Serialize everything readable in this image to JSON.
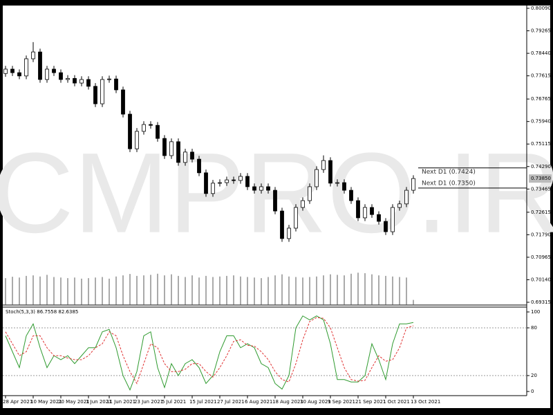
{
  "chart_data": [
    {
      "type": "candlestick",
      "watermark": "CMPRO.IR",
      "xlim": [
        0,
        59
      ],
      "ylim": [
        0.69315,
        0.8009
      ],
      "yticks": [
        {
          "value": 0.8009,
          "label": "0.80090"
        },
        0.79265,
        {
          "value": 0.7844,
          "label": "0.78440"
        },
        0.77615,
        0.76765,
        {
          "value": 0.7594,
          "label": "0.75940"
        },
        0.75115,
        {
          "value": 0.7429,
          "label": "0.74290"
        },
        0.73465,
        0.72615,
        {
          "value": 0.7179,
          "label": "0.71790"
        },
        0.70965,
        {
          "value": 0.7014,
          "label": "0.70140"
        },
        0.69315
      ],
      "last_price": {
        "value": 0.7385,
        "label": "0.73850"
      },
      "levels": [
        {
          "value": 0.7424,
          "label": "Next D1 (0.7424)"
        },
        {
          "value": 0.735,
          "label": "Next D1 (0.7350)"
        }
      ],
      "ohlc": [
        [
          0.777,
          0.7798,
          0.7758,
          0.7786
        ],
        [
          0.7786,
          0.7798,
          0.7761,
          0.7773
        ],
        [
          0.7773,
          0.7785,
          0.7749,
          0.7761
        ],
        [
          0.7761,
          0.7836,
          0.7749,
          0.7824
        ],
        [
          0.7824,
          0.7885,
          0.7812,
          0.7849
        ],
        [
          0.7849,
          0.7861,
          0.7736,
          0.7748
        ],
        [
          0.7748,
          0.7798,
          0.7736,
          0.7786
        ],
        [
          0.7786,
          0.7798,
          0.7761,
          0.7773
        ],
        [
          0.7773,
          0.7785,
          0.7736,
          0.7748
        ],
        [
          0.7748,
          0.7764,
          0.7736,
          0.7752
        ],
        [
          0.7752,
          0.7764,
          0.7723,
          0.7735
        ],
        [
          0.7735,
          0.776,
          0.7723,
          0.7748
        ],
        [
          0.7748,
          0.776,
          0.7711,
          0.7723
        ],
        [
          0.7723,
          0.7735,
          0.7647,
          0.7659
        ],
        [
          0.7659,
          0.776,
          0.7647,
          0.7748
        ],
        [
          0.7748,
          0.7762,
          0.7736,
          0.775
        ],
        [
          0.775,
          0.7762,
          0.7698,
          0.771
        ],
        [
          0.771,
          0.7722,
          0.7609,
          0.7621
        ],
        [
          0.7621,
          0.7633,
          0.7482,
          0.7494
        ],
        [
          0.7494,
          0.757,
          0.7482,
          0.7558
        ],
        [
          0.7558,
          0.7595,
          0.7546,
          0.7583
        ],
        [
          0.7583,
          0.7595,
          0.7568,
          0.758
        ],
        [
          0.758,
          0.7592,
          0.752,
          0.7532
        ],
        [
          0.7532,
          0.7544,
          0.7457,
          0.7469
        ],
        [
          0.7469,
          0.7532,
          0.7457,
          0.752
        ],
        [
          0.752,
          0.7532,
          0.7432,
          0.7444
        ],
        [
          0.7444,
          0.7494,
          0.7432,
          0.7482
        ],
        [
          0.7482,
          0.7494,
          0.7444,
          0.7456
        ],
        [
          0.7456,
          0.7468,
          0.7394,
          0.7406
        ],
        [
          0.7406,
          0.7418,
          0.7318,
          0.733
        ],
        [
          0.733,
          0.738,
          0.7318,
          0.7368
        ],
        [
          0.7368,
          0.7382,
          0.7356,
          0.737
        ],
        [
          0.737,
          0.7392,
          0.7358,
          0.738
        ],
        [
          0.738,
          0.7392,
          0.7366,
          0.7378
        ],
        [
          0.7378,
          0.7405,
          0.7366,
          0.7393
        ],
        [
          0.7393,
          0.7405,
          0.7343,
          0.7355
        ],
        [
          0.7355,
          0.7367,
          0.733,
          0.7342
        ],
        [
          0.7342,
          0.7367,
          0.733,
          0.7355
        ],
        [
          0.7355,
          0.7367,
          0.733,
          0.7342
        ],
        [
          0.7342,
          0.7354,
          0.7254,
          0.7266
        ],
        [
          0.7266,
          0.7278,
          0.7153,
          0.7165
        ],
        [
          0.7165,
          0.7215,
          0.7153,
          0.7203
        ],
        [
          0.7203,
          0.7291,
          0.7191,
          0.7279
        ],
        [
          0.7279,
          0.7316,
          0.7267,
          0.7304
        ],
        [
          0.7304,
          0.7367,
          0.7292,
          0.7355
        ],
        [
          0.7355,
          0.743,
          0.7343,
          0.7418
        ],
        [
          0.7418,
          0.747,
          0.7406,
          0.7451
        ],
        [
          0.7451,
          0.7463,
          0.7356,
          0.7368
        ],
        [
          0.7368,
          0.7382,
          0.7356,
          0.737
        ],
        [
          0.737,
          0.7382,
          0.733,
          0.7342
        ],
        [
          0.7342,
          0.7354,
          0.7292,
          0.7304
        ],
        [
          0.7304,
          0.7316,
          0.7229,
          0.7241
        ],
        [
          0.7241,
          0.7291,
          0.7229,
          0.7279
        ],
        [
          0.7279,
          0.7291,
          0.7241,
          0.7253
        ],
        [
          0.7253,
          0.7265,
          0.7216,
          0.7228
        ],
        [
          0.7228,
          0.724,
          0.7178,
          0.719
        ],
        [
          0.719,
          0.7291,
          0.7178,
          0.7279
        ],
        [
          0.7279,
          0.7304,
          0.7267,
          0.7292
        ],
        [
          0.7292,
          0.7354,
          0.728,
          0.7342
        ],
        [
          0.7342,
          0.7397,
          0.733,
          0.7385
        ]
      ],
      "volume": [
        0.702,
        0.7025,
        0.7022,
        0.7028,
        0.703,
        0.7026,
        0.7032,
        0.7024,
        0.7022,
        0.702,
        0.7022,
        0.7018,
        0.702,
        0.7022,
        0.7024,
        0.7018,
        0.7026,
        0.703,
        0.7035,
        0.7028,
        0.703,
        0.7032,
        0.7036,
        0.703,
        0.7034,
        0.7028,
        0.7024,
        0.703,
        0.7022,
        0.7028,
        0.7024,
        0.7026,
        0.7028,
        0.703,
        0.7026,
        0.7024,
        0.7022,
        0.702,
        0.7024,
        0.703,
        0.7034,
        0.7026,
        0.7024,
        0.7022,
        0.7024,
        0.7026,
        0.703,
        0.7034,
        0.7032,
        0.703,
        0.7036,
        0.704,
        0.7038,
        0.7034,
        0.703,
        0.7028,
        0.7026,
        0.7024,
        0.7022,
        0.694
      ]
    },
    {
      "type": "line",
      "label": "Stoch(5,3,3) 86.7558 82.6385",
      "xlim": [
        0,
        59
      ],
      "ylim": [
        0,
        100
      ],
      "yticks": [
        0,
        20,
        80,
        100
      ],
      "xticks": [
        {
          "value": 0,
          "label": "28 Apr 2021"
        },
        {
          "value": 4,
          "label": "10 May 2021"
        },
        {
          "value": 8,
          "label": "20 May 2021"
        },
        {
          "value": 12,
          "label": "1 Jun 2021"
        },
        {
          "value": 15,
          "label": "11 Jun 2021"
        },
        {
          "value": 19,
          "label": "23 Jun 2021"
        },
        {
          "value": 23,
          "label": "5 Jul 2021"
        },
        {
          "value": 27,
          "label": "15 Jul 2021"
        },
        {
          "value": 31,
          "label": "27 Jul 2021"
        },
        {
          "value": 35,
          "label": "6 Aug 2021"
        },
        {
          "value": 39,
          "label": "18 Aug 2021"
        },
        {
          "value": 43,
          "label": "30 Aug 2021"
        },
        {
          "value": 47,
          "label": "9 Sep 2021"
        },
        {
          "value": 51,
          "label": "21 Sep 2021"
        },
        {
          "value": 55,
          "label": "1 Oct 2021"
        },
        {
          "value": 59,
          "label": "13 Oct 2021"
        }
      ],
      "series": [
        {
          "color": "#2e9a2e",
          "values": [
            70,
            50,
            30,
            70,
            85,
            55,
            30,
            45,
            40,
            45,
            35,
            45,
            55,
            55,
            75,
            78,
            55,
            20,
            2,
            25,
            70,
            75,
            30,
            5,
            35,
            20,
            35,
            40,
            30,
            10,
            20,
            50,
            70,
            70,
            55,
            60,
            55,
            35,
            30,
            10,
            3,
            20,
            80,
            95,
            90,
            95,
            90,
            60,
            15,
            15,
            12,
            12,
            20,
            60,
            40,
            15,
            60,
            85,
            85,
            86.7558
          ]
        },
        {
          "color": "#e03030",
          "dashed": true,
          "values": [
            75,
            60,
            45,
            50,
            70,
            70,
            55,
            45,
            45,
            42,
            40,
            40,
            45,
            55,
            60,
            75,
            70,
            45,
            25,
            10,
            35,
            60,
            55,
            35,
            25,
            25,
            28,
            35,
            35,
            25,
            18,
            30,
            45,
            63,
            65,
            58,
            57,
            50,
            40,
            25,
            15,
            12,
            35,
            65,
            88,
            93,
            92,
            80,
            55,
            30,
            15,
            13,
            14,
            30,
            45,
            38,
            40,
            55,
            80,
            82.6385
          ]
        }
      ]
    }
  ]
}
